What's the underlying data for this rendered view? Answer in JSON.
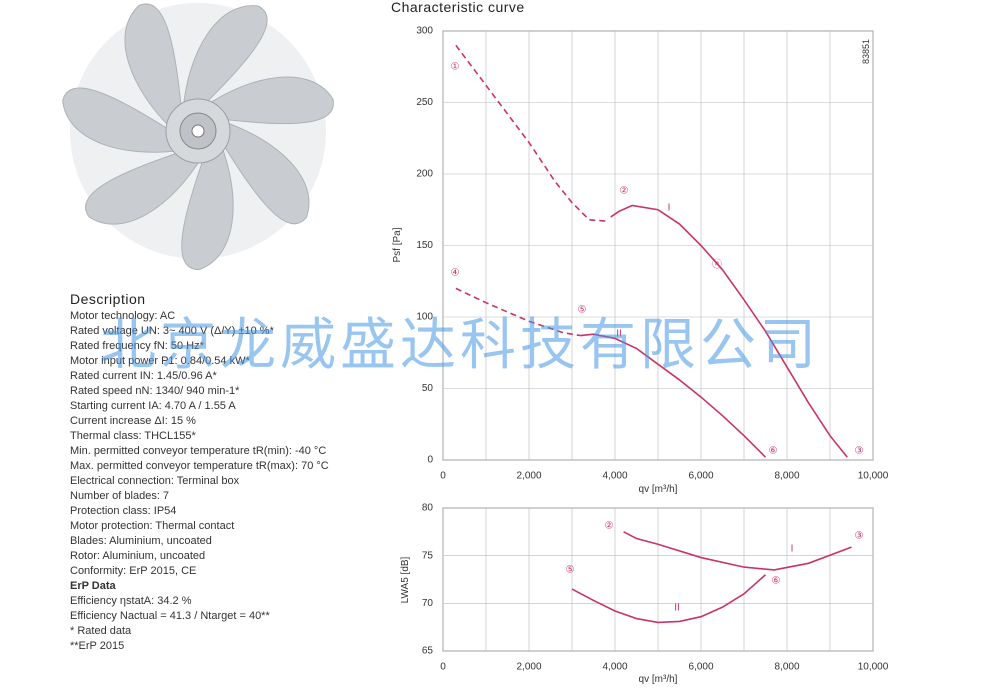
{
  "description": {
    "title": "Description",
    "lines": [
      "Motor technology: AC",
      "Rated voltage UN: 3~ 400 V (Δ/Y) ±10 %*",
      "Rated frequency fN: 50 Hz*",
      "Motor input power P1: 0.84/0.54 kW*",
      "Rated current IN: 1.45/0.96 A*",
      "Rated speed nN: 1340/ 940 min-1*",
      "Starting current IA: 4.70 A / 1.55 A",
      "Current increase ΔI: 15 %",
      "Thermal class: THCL155*",
      "Min. permitted conveyor temperature tR(min): -40 °C",
      "Max. permitted conveyor temperature tR(max): 70 °C",
      "Electrical connection: Terminal box",
      "Number of blades: 7",
      "Protection class: IP54",
      "Motor protection: Thermal contact",
      "Blades: Aluminium, uncoated",
      "Rotor: Aluminium, uncoated",
      "Conformity: ErP 2015, CE",
      "ErP Data",
      "Efficiency ηstatA: 34.2 %",
      "Efficiency Nactual = 41.3 / Ntarget = 40**",
      "* Rated data",
      "**ErP 2015"
    ]
  },
  "watermark": "北京龙威盛达科技有限公司",
  "chart_data": [
    {
      "type": "line",
      "title": "Characteristic curve",
      "code": "83851",
      "xlabel": "qv [m³/h]",
      "ylabel": "Psf [Pa]",
      "xlim": [
        0,
        10000
      ],
      "ylim": [
        0,
        300
      ],
      "xticks": [
        0,
        {
          "value": 2000,
          "label": "2,000"
        },
        {
          "value": 4000,
          "label": "4,000"
        },
        {
          "value": 6000,
          "label": "6,000"
        },
        {
          "value": 8000,
          "label": "8,000"
        },
        {
          "value": 10000,
          "label": "10,000"
        }
      ],
      "yticks": [
        0,
        50,
        100,
        150,
        200,
        250,
        300
      ],
      "xgrid": [
        1000,
        3000,
        5000,
        7000,
        9000
      ],
      "grid": true,
      "series": [
        {
          "color": "#c8336b",
          "style": "dashed",
          "x": [
            300,
            1000,
            2000,
            2600,
            3000,
            3400,
            3800
          ],
          "values": [
            290,
            262,
            222,
            195,
            180,
            168,
            167
          ]
        },
        {
          "color": "#c8336b",
          "style": "solid",
          "x": [
            3900,
            4100,
            4400,
            5000,
            5500,
            6000,
            6500,
            7000,
            7500,
            8000,
            8500,
            9000,
            9400
          ],
          "values": [
            170,
            174,
            178,
            175,
            165,
            150,
            133,
            112,
            90,
            65,
            40,
            17,
            2
          ]
        },
        {
          "color": "#c8336b",
          "style": "dashed",
          "x": [
            300,
            1000,
            2000,
            2800,
            3200
          ],
          "values": [
            120,
            110,
            97,
            89,
            87
          ]
        },
        {
          "color": "#c8336b",
          "style": "solid",
          "x": [
            3200,
            3500,
            4000,
            4500,
            5000,
            5500,
            6000,
            6500,
            7000,
            7500
          ],
          "values": [
            87,
            88,
            85,
            78,
            67,
            56,
            44,
            31,
            17,
            2
          ]
        }
      ],
      "annotations": [
        "①",
        "②",
        "③",
        "④",
        "⑤",
        "⑥",
        "I",
        "II",
        "ⓝ"
      ]
    },
    {
      "type": "line",
      "xlabel": "qv [m³/h]",
      "ylabel": "LWA5 [dB]",
      "xlim": [
        0,
        10000
      ],
      "ylim": [
        65,
        80
      ],
      "xticks": [
        0,
        {
          "value": 2000,
          "label": "2,000"
        },
        {
          "value": 4000,
          "label": "4,000"
        },
        {
          "value": 6000,
          "label": "6,000"
        },
        {
          "value": 8000,
          "label": "8,000"
        },
        {
          "value": 10000,
          "label": "10,000"
        }
      ],
      "yticks": [
        65,
        70,
        75,
        80
      ],
      "xgrid": [
        1000,
        3000,
        5000,
        7000,
        9000
      ],
      "grid": true,
      "series": [
        {
          "color": "#c8336b",
          "style": "solid",
          "x": [
            4200,
            4500,
            5000,
            6000,
            7000,
            7700,
            8500,
            9500
          ],
          "values": [
            77.5,
            76.8,
            76.2,
            74.8,
            73.8,
            73.5,
            74.2,
            75.9
          ]
        },
        {
          "color": "#c8336b",
          "style": "solid",
          "x": [
            3000,
            3500,
            4000,
            4500,
            5000,
            5500,
            6000,
            6500,
            7000,
            7500
          ],
          "values": [
            71.5,
            70.3,
            69.2,
            68.4,
            68.0,
            68.1,
            68.6,
            69.6,
            71.0,
            73.0
          ]
        }
      ],
      "annotations": [
        "②",
        "③",
        "⑤",
        "⑥",
        "I",
        "II"
      ]
    }
  ]
}
